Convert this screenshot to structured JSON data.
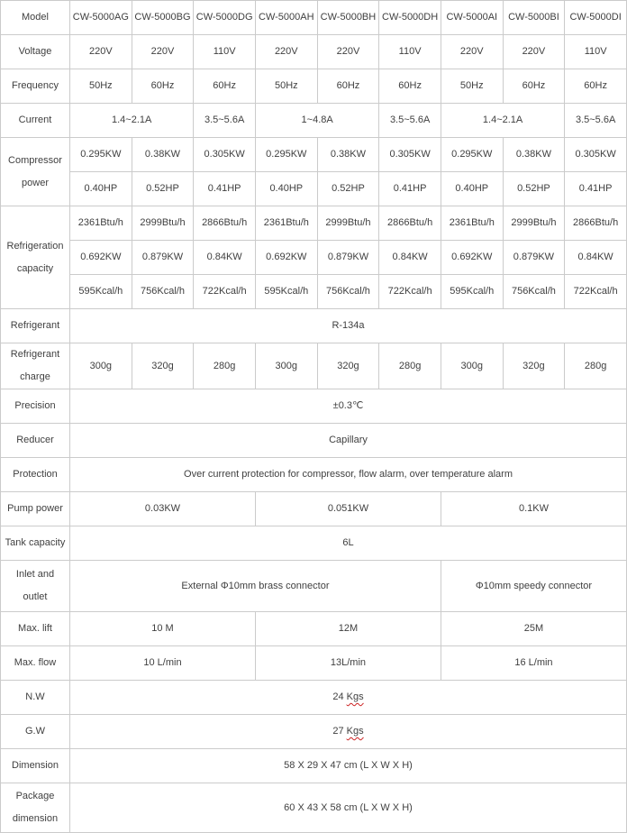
{
  "colors": {
    "border": "#cbcbcb",
    "text": "#3f3f3f",
    "spellcheck_underline": "#cc2222",
    "background": "#ffffff"
  },
  "chart_data": {
    "type": "table",
    "header": {
      "label": "Model",
      "models": [
        "CW-5000AG",
        "CW-5000BG",
        "CW-5000DG",
        "CW-5000AH",
        "CW-5000BH",
        "CW-5000DH",
        "CW-5000AI",
        "CW-5000BI",
        "CW-5000DI"
      ]
    },
    "rows": {
      "voltage": {
        "label": "Voltage",
        "values": [
          "220V",
          "220V",
          "110V",
          "220V",
          "220V",
          "110V",
          "220V",
          "220V",
          "110V"
        ]
      },
      "frequency": {
        "label": "Frequency",
        "values": [
          "50Hz",
          "60Hz",
          "60Hz",
          "50Hz",
          "60Hz",
          "60Hz",
          "50Hz",
          "60Hz",
          "60Hz"
        ]
      },
      "current": {
        "label": "Current",
        "values": [
          "1.4~2.1A",
          "3.5~5.6A",
          "1~4.8A",
          "3.5~5.6A",
          "1.4~2.1A",
          "3.5~5.6A"
        ],
        "spans": [
          2,
          1,
          2,
          1,
          2,
          1
        ]
      },
      "compressor_power": {
        "label": "Compressor power",
        "kw": [
          "0.295KW",
          "0.38KW",
          "0.305KW",
          "0.295KW",
          "0.38KW",
          "0.305KW",
          "0.295KW",
          "0.38KW",
          "0.305KW"
        ],
        "hp": [
          "0.40HP",
          "0.52HP",
          "0.41HP",
          "0.40HP",
          "0.52HP",
          "0.41HP",
          "0.40HP",
          "0.52HP",
          "0.41HP"
        ]
      },
      "refrigeration_capacity": {
        "label": "Refrigeration capacity",
        "btu": [
          "2361Btu/h",
          "2999Btu/h",
          "2866Btu/h",
          "2361Btu/h",
          "2999Btu/h",
          "2866Btu/h",
          "2361Btu/h",
          "2999Btu/h",
          "2866Btu/h"
        ],
        "kw": [
          "0.692KW",
          "0.879KW",
          "0.84KW",
          "0.692KW",
          "0.879KW",
          "0.84KW",
          "0.692KW",
          "0.879KW",
          "0.84KW"
        ],
        "kcal": [
          "595Kcal/h",
          "756Kcal/h",
          "722Kcal/h",
          "595Kcal/h",
          "756Kcal/h",
          "722Kcal/h",
          "595Kcal/h",
          "756Kcal/h",
          "722Kcal/h"
        ]
      },
      "refrigerant": {
        "label": "Refrigerant",
        "value": "R-134a"
      },
      "refrigerant_charge": {
        "label": "Refrigerant charge",
        "values": [
          "300g",
          "320g",
          "280g",
          "300g",
          "320g",
          "280g",
          "300g",
          "320g",
          "280g"
        ]
      },
      "precision": {
        "label": "Precision",
        "value": "±0.3℃"
      },
      "reducer": {
        "label": "Reducer",
        "value": "Capillary"
      },
      "protection": {
        "label": "Protection",
        "value": "Over current protection for compressor, flow alarm, over temperature alarm"
      },
      "pump_power": {
        "label": "Pump power",
        "values": [
          "0.03KW",
          "0.051KW",
          "0.1KW"
        ],
        "spans": [
          3,
          3,
          3
        ]
      },
      "tank_capacity": {
        "label": "Tank capacity",
        "value": "6L"
      },
      "inlet_outlet": {
        "label": "Inlet and outlet",
        "values": [
          "External Φ10mm brass connector",
          "Φ10mm speedy connector"
        ],
        "spans": [
          6,
          3
        ]
      },
      "max_lift": {
        "label": "Max. lift",
        "values": [
          "10 M",
          "12M",
          "25M"
        ],
        "spans": [
          3,
          3,
          3
        ]
      },
      "max_flow": {
        "label": "Max. flow",
        "values": [
          "10 L/min",
          "13L/min",
          "16 L/min"
        ],
        "spans": [
          3,
          3,
          3
        ]
      },
      "nw": {
        "label": "N.W",
        "prefix": "24 ",
        "word": "Kgs"
      },
      "gw": {
        "label": "G.W",
        "prefix": "27 ",
        "word": "Kgs"
      },
      "dimension": {
        "label": "Dimension",
        "value": "58 X 29 X 47 cm (L X W X H)"
      },
      "package_dimension": {
        "label": "Package dimension",
        "value": "60 X 43 X 58 cm (L X W X H)"
      }
    }
  }
}
